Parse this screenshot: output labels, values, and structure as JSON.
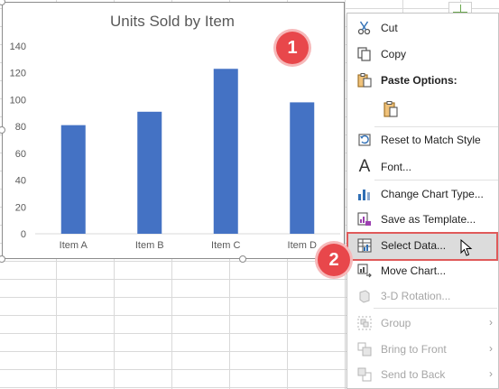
{
  "chart_data": {
    "type": "bar",
    "title": "Units Sold by Item",
    "categories": [
      "Item A",
      "Item B",
      "Item C",
      "Item D"
    ],
    "values": [
      81,
      91,
      123,
      98
    ],
    "ylim": [
      0,
      140
    ],
    "yticks": [
      0,
      20,
      40,
      60,
      80,
      100,
      120,
      140
    ],
    "xlabel": "",
    "ylabel": "",
    "grid": false,
    "color": "#4472c4"
  },
  "badges": {
    "one": "1",
    "two": "2"
  },
  "context_menu": {
    "cut": "Cut",
    "copy": "Copy",
    "paste_options": "Paste Options:",
    "reset_style": "Reset to Match Style",
    "font": "Font...",
    "change_type": "Change Chart Type...",
    "save_template": "Save as Template...",
    "select_data": "Select Data...",
    "move_chart": "Move Chart...",
    "rotation": "3-D Rotation...",
    "group": "Group",
    "bring_front": "Bring to Front",
    "send_back": "Send to Back"
  },
  "colors": {
    "accent": "#e8474b",
    "bar": "#4472c4"
  }
}
